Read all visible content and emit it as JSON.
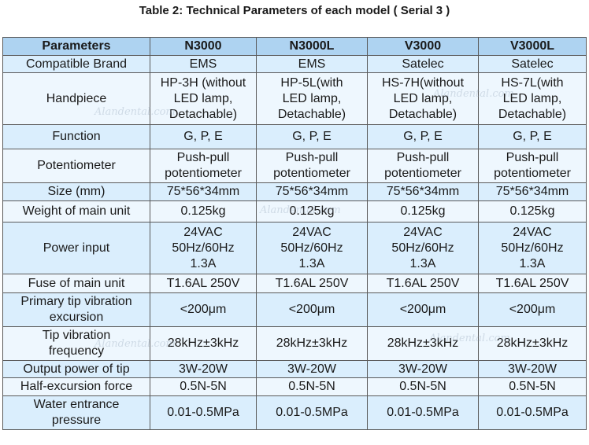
{
  "title": "Table 2: Technical Parameters of each model ( Serial  3 )",
  "watermark": "Alandental.com",
  "headers": [
    "Parameters",
    "N3000",
    "N3000L",
    "V3000",
    "V3000L"
  ],
  "rows": [
    {
      "label": "Compatible Brand",
      "values": [
        "EMS",
        "EMS",
        "Satelec",
        "Satelec"
      ]
    },
    {
      "label": "Handpiece",
      "values": [
        "HP-3H (without\nLED lamp,\nDetachable)",
        "HP-5L(with\nLED lamp,\nDetachable)",
        "HS-7H(without\nLED lamp,\nDetachable)",
        "HS-7L(with\nLED lamp,\nDetachable)"
      ]
    },
    {
      "label": "Function",
      "values": [
        "G, P, E",
        "G, P, E",
        "G, P, E",
        "G, P, E"
      ]
    },
    {
      "label": "Potentiometer",
      "values": [
        "Push-pull\npotentiometer",
        "Push-pull\npotentiometer",
        "Push-pull\npotentiometer",
        "Push-pull\npotentiometer"
      ]
    },
    {
      "label": "Size (mm)",
      "values": [
        "75*56*34mm",
        "75*56*34mm",
        "75*56*34mm",
        "75*56*34mm"
      ]
    },
    {
      "label": "Weight of main unit",
      "values": [
        "0.125kg",
        "0.125kg",
        "0.125kg",
        "0.125kg"
      ]
    },
    {
      "label": "Power input",
      "values": [
        "24VAC\n50Hz/60Hz\n1.3A",
        "24VAC\n50Hz/60Hz\n1.3A",
        "24VAC\n50Hz/60Hz\n1.3A",
        "24VAC\n50Hz/60Hz\n1.3A"
      ]
    },
    {
      "label": "Fuse of main unit",
      "values": [
        "T1.6AL 250V",
        "T1.6AL 250V",
        "T1.6AL 250V",
        "T1.6AL 250V"
      ]
    },
    {
      "label": "Primary tip vibration\nexcursion",
      "values": [
        "<200μm",
        "<200μm",
        "<200μm",
        "<200μm"
      ]
    },
    {
      "label": "Tip vibration\nfrequency",
      "values": [
        "28kHz±3kHz",
        "28kHz±3kHz",
        "28kHz±3kHz",
        "28kHz±3kHz"
      ]
    },
    {
      "label": "Output power of tip",
      "values": [
        "3W-20W",
        "3W-20W",
        "3W-20W",
        "3W-20W"
      ]
    },
    {
      "label": "Half-excursion force",
      "values": [
        "0.5N-5N",
        "0.5N-5N",
        "0.5N-5N",
        "0.5N-5N"
      ]
    },
    {
      "label": "Water entrance\npressure",
      "values": [
        "0.01-0.5MPa",
        "0.01-0.5MPa",
        "0.01-0.5MPa",
        "0.01-0.5MPa"
      ]
    }
  ]
}
